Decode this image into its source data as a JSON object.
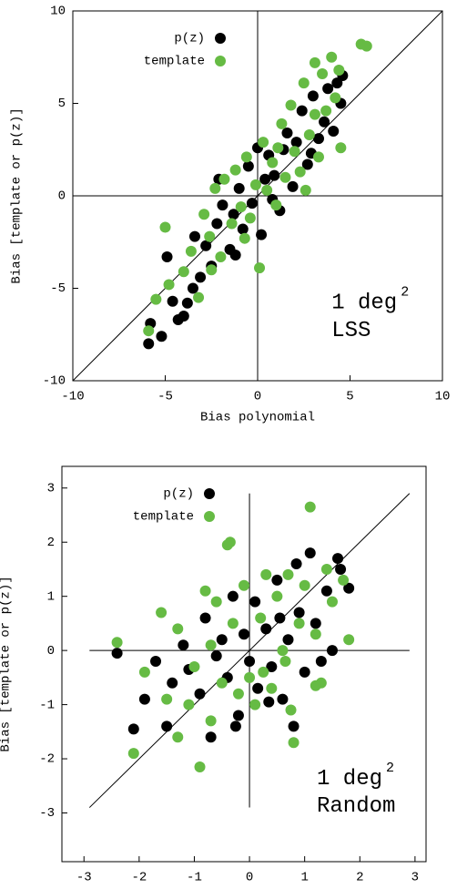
{
  "chart_data": [
    {
      "type": "scatter",
      "xlabel": "Bias polynomial",
      "ylabel": "Bias [template or p(z)]",
      "xlim": [
        -10,
        10
      ],
      "ylim": [
        -10,
        10
      ],
      "xticks": [
        -10,
        -5,
        0,
        5,
        10
      ],
      "yticks": [
        -10,
        -5,
        0,
        5,
        10
      ],
      "reference_extent": [
        -10,
        10
      ],
      "legend": "upper-left",
      "annotation": {
        "text": "1 deg",
        "superscript": "2",
        "subtext": "LSS"
      },
      "series": [
        {
          "name": "p(z)",
          "color": "#000000",
          "x": [
            -5.9,
            -5.2,
            -4.3,
            -4.0,
            -3.8,
            -4.6,
            -3.5,
            -4.9,
            -3.1,
            -2.8,
            -2.5,
            -2.2,
            -1.9,
            -2.1,
            -1.5,
            -1.3,
            -1.0,
            -0.8,
            -0.5,
            -0.3,
            0.0,
            0.2,
            0.4,
            0.6,
            0.9,
            1.2,
            1.4,
            1.6,
            1.9,
            2.1,
            2.4,
            2.7,
            3.0,
            3.3,
            3.6,
            3.8,
            4.1,
            4.3,
            4.6,
            4.5,
            -5.8,
            -3.4,
            -1.2,
            0.8,
            2.9
          ],
          "values": [
            -8.0,
            -7.6,
            -6.7,
            -6.5,
            -5.8,
            -5.7,
            -5.0,
            -3.3,
            -4.4,
            -2.7,
            -3.8,
            -1.5,
            -0.5,
            0.9,
            -2.9,
            -1.0,
            0.4,
            -1.8,
            1.6,
            -0.4,
            2.6,
            -2.1,
            0.9,
            2.2,
            1.1,
            -0.8,
            2.5,
            3.4,
            0.5,
            2.9,
            4.6,
            1.7,
            5.4,
            3.1,
            4.0,
            5.8,
            3.5,
            6.1,
            6.5,
            5.0,
            -6.9,
            -2.2,
            -3.2,
            -0.2,
            2.3
          ]
        },
        {
          "name": "template",
          "color": "#66bb44",
          "x": [
            -5.9,
            -5.5,
            -4.8,
            -5.0,
            -4.0,
            -3.6,
            -3.2,
            -2.9,
            -2.6,
            -2.3,
            -2.0,
            -1.8,
            -1.4,
            -1.2,
            -0.9,
            -0.6,
            -0.4,
            -0.1,
            0.1,
            0.3,
            0.5,
            0.8,
            1.0,
            1.3,
            1.5,
            1.8,
            2.0,
            2.3,
            2.5,
            2.8,
            3.1,
            3.3,
            3.5,
            3.7,
            4.0,
            4.2,
            4.5,
            4.4,
            5.6,
            5.9,
            3.1,
            -2.5,
            -0.7,
            1.1,
            2.6
          ],
          "values": [
            -7.3,
            -5.6,
            -4.8,
            -1.7,
            -4.1,
            -3.0,
            -5.5,
            -1.0,
            -2.2,
            0.4,
            -3.3,
            0.9,
            -1.5,
            1.4,
            -0.6,
            2.1,
            -1.2,
            0.6,
            -3.9,
            2.9,
            0.3,
            1.8,
            -0.5,
            3.9,
            1.0,
            4.9,
            2.4,
            1.3,
            6.1,
            3.3,
            4.4,
            2.1,
            6.6,
            4.6,
            7.5,
            5.3,
            2.6,
            6.8,
            8.2,
            8.1,
            7.2,
            -4.0,
            -2.3,
            2.6,
            0.3
          ]
        }
      ]
    },
    {
      "type": "scatter",
      "xlabel": "Bias polynomial",
      "ylabel": "Bias [template or p(z)]",
      "xlim": [
        -3.4,
        3.2
      ],
      "ylim": [
        -3.9,
        3.4
      ],
      "xticks": [
        -3,
        -2,
        -1,
        0,
        1,
        2,
        3
      ],
      "yticks": [
        -3,
        -2,
        -1,
        0,
        1,
        2,
        3
      ],
      "reference_extent": [
        -2.9,
        2.9
      ],
      "legend": "upper-left",
      "annotation": {
        "text": "1 deg",
        "superscript": "2",
        "subtext": "Random"
      },
      "series": [
        {
          "name": "p(z)",
          "color": "#000000",
          "x": [
            -2.4,
            -2.1,
            -1.9,
            -1.5,
            -1.4,
            -1.2,
            -1.1,
            -0.9,
            -0.8,
            -0.7,
            -0.5,
            -0.4,
            -0.3,
            -0.2,
            -0.1,
            0.0,
            0.1,
            0.15,
            0.3,
            0.4,
            0.5,
            0.6,
            0.7,
            0.8,
            0.9,
            1.0,
            1.1,
            1.2,
            1.3,
            1.4,
            1.6,
            1.65,
            1.8,
            0.85,
            -0.25,
            0.35,
            -0.6,
            1.5,
            -1.7,
            0.55
          ],
          "values": [
            -0.05,
            -1.45,
            -0.9,
            -1.4,
            -0.6,
            0.1,
            -0.35,
            -0.8,
            0.6,
            -1.6,
            0.2,
            -0.5,
            1.0,
            -1.2,
            0.3,
            -0.2,
            0.9,
            -0.7,
            0.4,
            -0.3,
            1.3,
            -0.9,
            0.2,
            -1.4,
            0.7,
            -0.4,
            1.8,
            0.5,
            -0.2,
            1.1,
            1.7,
            1.5,
            1.15,
            1.6,
            -1.4,
            -0.95,
            -0.1,
            0.0,
            -0.2,
            0.6
          ]
        },
        {
          "name": "template",
          "color": "#66bb44",
          "x": [
            -2.4,
            -2.1,
            -1.9,
            -1.6,
            -1.5,
            -1.3,
            -1.1,
            -1.0,
            -0.9,
            -0.8,
            -0.7,
            -0.6,
            -0.5,
            -0.4,
            -0.35,
            -0.3,
            -0.2,
            -0.1,
            0.0,
            0.1,
            0.2,
            0.3,
            0.4,
            0.5,
            0.6,
            0.7,
            0.75,
            0.8,
            0.9,
            1.0,
            1.1,
            1.2,
            1.3,
            1.4,
            1.5,
            1.7,
            1.8,
            -1.3,
            0.25,
            -0.7,
            0.65,
            1.2
          ],
          "values": [
            0.15,
            -1.9,
            -0.4,
            0.7,
            -0.9,
            0.4,
            -1.0,
            -0.3,
            -2.15,
            1.1,
            -1.3,
            0.9,
            -0.6,
            1.95,
            2.0,
            0.5,
            -0.8,
            1.2,
            -0.5,
            -1.0,
            0.6,
            1.4,
            -0.7,
            1.0,
            0.0,
            1.4,
            -1.1,
            -1.7,
            0.5,
            1.2,
            2.65,
            0.3,
            -0.6,
            1.5,
            0.9,
            1.3,
            0.2,
            -1.6,
            -0.4,
            0.1,
            -0.2,
            -0.65
          ]
        }
      ]
    }
  ]
}
